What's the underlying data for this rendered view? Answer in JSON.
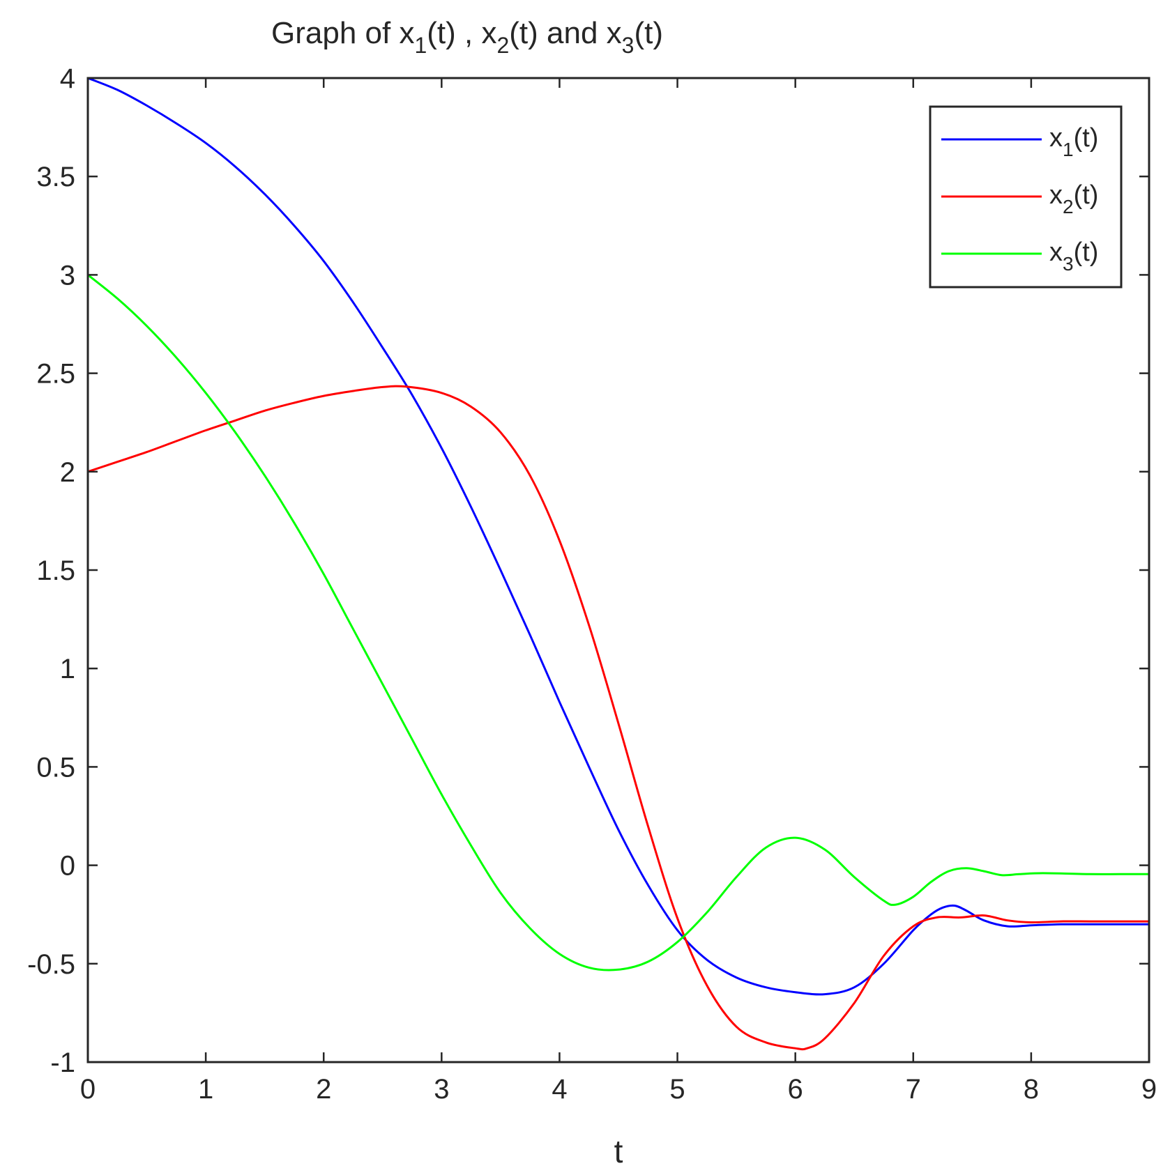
{
  "chart_data": {
    "type": "line",
    "title": {
      "parts": [
        {
          "text": "Graph of x"
        },
        {
          "text": "1",
          "sub": true
        },
        {
          "text": "(t) , x"
        },
        {
          "text": "2",
          "sub": true
        },
        {
          "text": "(t) and x"
        },
        {
          "text": "3",
          "sub": true
        },
        {
          "text": "(t)"
        }
      ]
    },
    "xlabel": "t",
    "ylabel": "",
    "xlim": [
      0,
      9
    ],
    "ylim": [
      -1,
      4
    ],
    "xticks": [
      0,
      1,
      2,
      3,
      4,
      5,
      6,
      7,
      8,
      9
    ],
    "xtick_labels": [
      "0",
      "1",
      "2",
      "3",
      "4",
      "5",
      "6",
      "7",
      "8",
      "9"
    ],
    "yticks": [
      -1,
      -0.5,
      0,
      0.5,
      1,
      1.5,
      2,
      2.5,
      3,
      3.5,
      4
    ],
    "ytick_labels": [
      "-1",
      "-0.5",
      "0",
      "0.5",
      "1",
      "1.5",
      "2",
      "2.5",
      "3",
      "3.5",
      "4"
    ],
    "grid": false,
    "legend_position": "top-right",
    "series": [
      {
        "name": "x1(t)",
        "legend_parts": [
          {
            "text": "x"
          },
          {
            "text": "1",
            "sub": true
          },
          {
            "text": "(t)"
          }
        ],
        "color": "#0000ff",
        "x": [
          0,
          0.25,
          0.5,
          0.75,
          1,
          1.25,
          1.5,
          1.75,
          2,
          2.25,
          2.5,
          2.75,
          3,
          3.25,
          3.5,
          3.75,
          4,
          4.25,
          4.5,
          4.75,
          5,
          5.25,
          5.5,
          5.75,
          6,
          6.25,
          6.5,
          6.75,
          7,
          7.15,
          7.25,
          7.35,
          7.45,
          7.6,
          7.8,
          8,
          8.25,
          8.5,
          8.75,
          9
        ],
        "y": [
          4,
          3.94,
          3.86,
          3.77,
          3.67,
          3.55,
          3.41,
          3.25,
          3.07,
          2.86,
          2.63,
          2.39,
          2.12,
          1.82,
          1.5,
          1.17,
          0.83,
          0.5,
          0.18,
          -0.1,
          -0.33,
          -0.48,
          -0.57,
          -0.62,
          -0.645,
          -0.655,
          -0.62,
          -0.5,
          -0.33,
          -0.25,
          -0.215,
          -0.205,
          -0.23,
          -0.28,
          -0.31,
          -0.305,
          -0.3,
          -0.3,
          -0.3,
          -0.3
        ]
      },
      {
        "name": "x2(t)",
        "legend_parts": [
          {
            "text": "x"
          },
          {
            "text": "2",
            "sub": true
          },
          {
            "text": "(t)"
          }
        ],
        "color": "#ff0000",
        "x": [
          0,
          0.25,
          0.5,
          0.75,
          1,
          1.25,
          1.5,
          1.75,
          2,
          2.25,
          2.5,
          2.7,
          3,
          3.25,
          3.5,
          3.75,
          4,
          4.25,
          4.5,
          4.75,
          5,
          5.25,
          5.5,
          5.75,
          6,
          6.1,
          6.25,
          6.5,
          6.75,
          7,
          7.2,
          7.4,
          7.6,
          7.8,
          8,
          8.25,
          8.5,
          8.75,
          9
        ],
        "y": [
          2,
          2.05,
          2.1,
          2.155,
          2.21,
          2.26,
          2.31,
          2.35,
          2.385,
          2.41,
          2.43,
          2.432,
          2.4,
          2.33,
          2.2,
          1.98,
          1.65,
          1.22,
          0.72,
          0.2,
          -0.27,
          -0.61,
          -0.82,
          -0.9,
          -0.93,
          -0.93,
          -0.88,
          -0.7,
          -0.46,
          -0.31,
          -0.265,
          -0.265,
          -0.255,
          -0.28,
          -0.29,
          -0.285,
          -0.285,
          -0.285,
          -0.285
        ]
      },
      {
        "name": "x3(t)",
        "legend_parts": [
          {
            "text": "x"
          },
          {
            "text": "3",
            "sub": true
          },
          {
            "text": "(t)"
          }
        ],
        "color": "#00ff00",
        "x": [
          0,
          0.25,
          0.5,
          0.75,
          1,
          1.25,
          1.5,
          1.75,
          2,
          2.25,
          2.5,
          2.75,
          3,
          3.25,
          3.5,
          3.75,
          4,
          4.25,
          4.5,
          4.75,
          5,
          5.25,
          5.5,
          5.75,
          6,
          6.25,
          6.5,
          6.75,
          6.85,
          7,
          7.15,
          7.3,
          7.45,
          7.6,
          7.75,
          7.9,
          8.1,
          8.5,
          8.75,
          9
        ],
        "y": [
          3,
          2.88,
          2.74,
          2.58,
          2.4,
          2.2,
          1.98,
          1.74,
          1.48,
          1.2,
          0.92,
          0.64,
          0.36,
          0.1,
          -0.14,
          -0.32,
          -0.45,
          -0.52,
          -0.53,
          -0.49,
          -0.39,
          -0.24,
          -0.06,
          0.09,
          0.14,
          0.08,
          -0.06,
          -0.18,
          -0.2,
          -0.16,
          -0.085,
          -0.03,
          -0.015,
          -0.03,
          -0.05,
          -0.045,
          -0.04,
          -0.045,
          -0.045,
          -0.045
        ]
      }
    ]
  }
}
